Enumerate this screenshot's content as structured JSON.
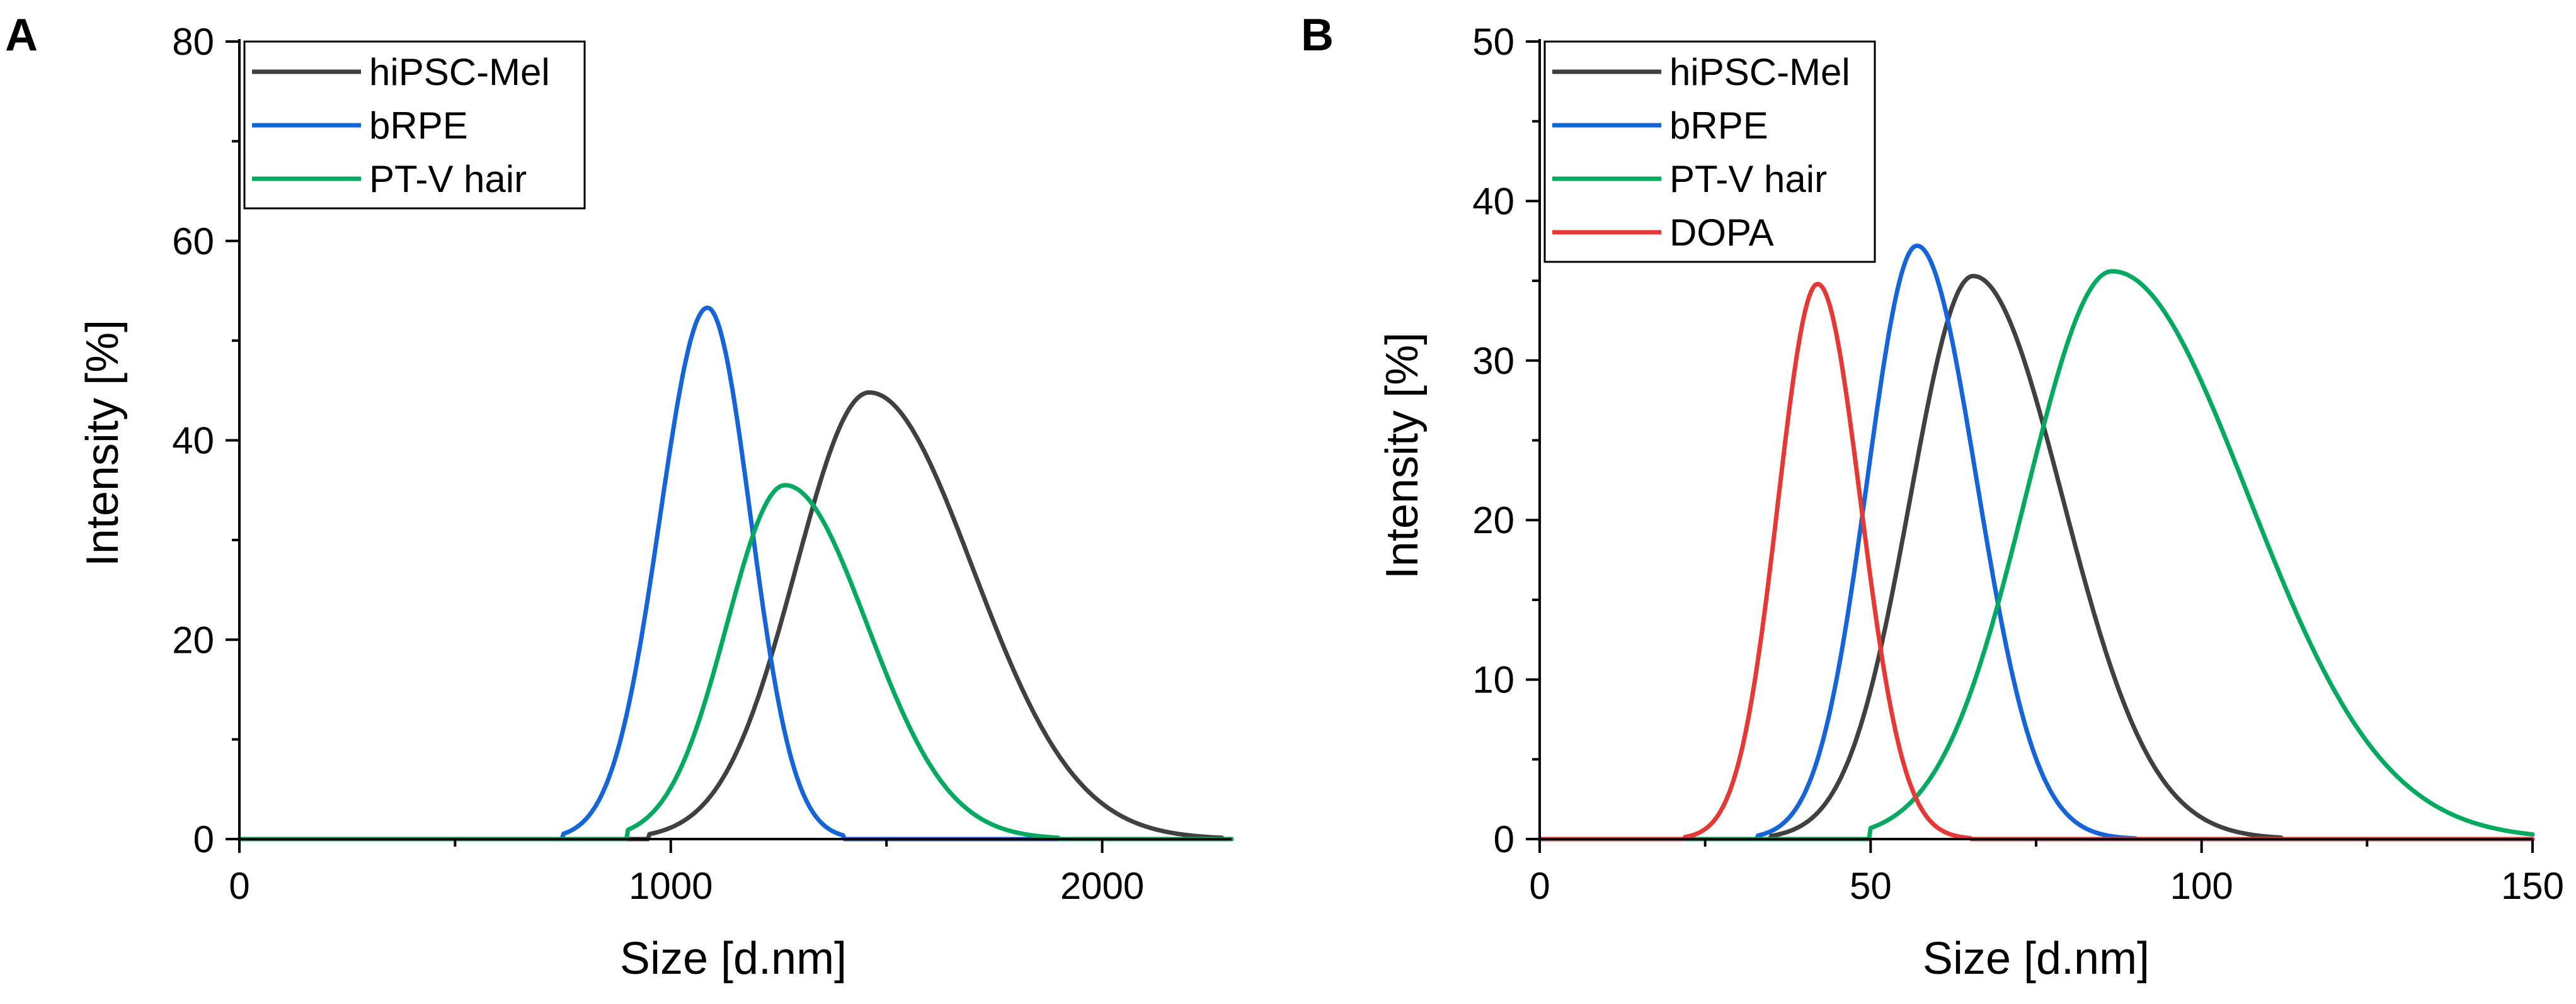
{
  "chart_data": [
    {
      "type": "line",
      "panel_label": "A",
      "xlabel": "Size [d.nm]",
      "ylabel": "Intensity [%]",
      "xlim": [
        0,
        2300
      ],
      "ylim": [
        0,
        80
      ],
      "xticks": [
        0,
        1000,
        2000
      ],
      "yticks": [
        0,
        20,
        40,
        60,
        80
      ],
      "grid": false,
      "legend_position": "top-left",
      "series": [
        {
          "name": "hiPSC-Mel",
          "color": "#404040",
          "shape": "skew",
          "peak_x": 1460,
          "peak_y": 44.8,
          "sigma_left": 170,
          "sigma_right": 240,
          "x_start": 950,
          "x_end": 2280
        },
        {
          "name": "bRPE",
          "color": "#1565d8",
          "shape": "gauss",
          "peak_x": 1085,
          "peak_y": 53.3,
          "sigma_left": 110,
          "sigma_right": 100,
          "x_start": 750,
          "x_end": 1400
        },
        {
          "name": "PT-V hair",
          "color": "#00a960",
          "shape": "skew",
          "peak_x": 1265,
          "peak_y": 35.5,
          "sigma_left": 135,
          "sigma_right": 190,
          "x_start": 900,
          "x_end": 1900
        }
      ]
    },
    {
      "type": "line",
      "panel_label": "B",
      "xlabel": "Size [d.nm]",
      "ylabel": "Intensity [%]",
      "xlim": [
        0,
        150
      ],
      "ylim": [
        0,
        50
      ],
      "xticks": [
        0,
        50,
        100,
        150
      ],
      "yticks": [
        0,
        10,
        20,
        30,
        40,
        50
      ],
      "grid": false,
      "legend_position": "top-left",
      "series": [
        {
          "name": "hiPSC-Mel",
          "color": "#404040",
          "shape": "skew",
          "peak_x": 65.5,
          "peak_y": 35.3,
          "sigma_left": 9.5,
          "sigma_right": 13.5,
          "x_start": 35,
          "x_end": 112
        },
        {
          "name": "bRPE",
          "color": "#1565d8",
          "shape": "skew",
          "peak_x": 57,
          "peak_y": 37.2,
          "sigma_left": 7.5,
          "sigma_right": 9,
          "x_start": 33,
          "x_end": 90
        },
        {
          "name": "PT-V hair",
          "color": "#00a960",
          "shape": "skew",
          "peak_x": 86.5,
          "peak_y": 35.6,
          "sigma_left": 13,
          "sigma_right": 20.5,
          "x_start": 50,
          "x_end": 150
        },
        {
          "name": "DOPA",
          "color": "#e53935",
          "shape": "skew",
          "peak_x": 42,
          "peak_y": 34.8,
          "sigma_left": 6,
          "sigma_right": 6.5,
          "x_start": 22,
          "x_end": 65
        }
      ]
    }
  ]
}
